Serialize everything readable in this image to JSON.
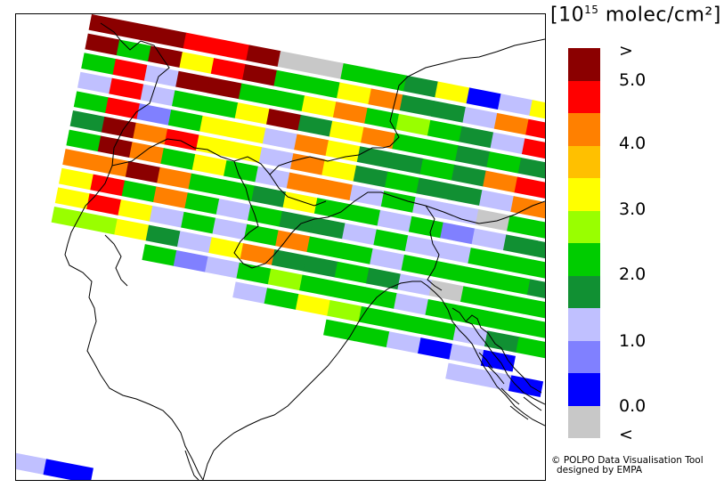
{
  "legend": {
    "unit_prefix": "[10",
    "unit_exp": "15",
    "unit_suffix": " molec/cm²]",
    "colors": [
      "#8b0000",
      "#ff0000",
      "#ff8000",
      "#ffc000",
      "#ffff00",
      "#99ff00",
      "#00cc00",
      "#119033",
      "#c0c0ff",
      "#8080ff",
      "#0000ff",
      "#c8c8c8"
    ],
    "labels": [
      ">",
      "5.0",
      "4.0",
      "3.0",
      "2.0",
      "1.0",
      "0.0",
      "<"
    ]
  },
  "credit": {
    "line1": "© POLPO Data Visualisation Tool",
    "line2": "designed by EMPA"
  },
  "swaths": [
    [
      "B",
      "B",
      "B",
      "R",
      "R",
      "B",
      "S",
      "S",
      "G",
      "G",
      "D",
      "Y",
      "N",
      "L",
      "Y",
      "O"
    ],
    [
      "B",
      "G",
      "B",
      "Y",
      "R",
      "B",
      "G",
      "G",
      "Y",
      "O",
      "D",
      "D",
      "L",
      "O",
      "R",
      "R"
    ],
    [
      "G",
      "R",
      "L",
      "B",
      "B",
      "G",
      "G",
      "Y",
      "O",
      "G",
      "U",
      "G",
      "D",
      "L",
      "R",
      "B"
    ],
    [
      "L",
      "R",
      "L",
      "G",
      "G",
      "Y",
      "B",
      "D",
      "Y",
      "O",
      "G",
      "G",
      "D",
      "G",
      "D",
      "B"
    ],
    [
      "G",
      "R",
      "M",
      "G",
      "Y",
      "Y",
      "L",
      "O",
      "Y",
      "D",
      "D",
      "G",
      "D",
      "O",
      "R",
      "B"
    ],
    [
      "D",
      "B",
      "O",
      "R",
      "Y",
      "Y",
      "L",
      "O",
      "Y",
      "D",
      "G",
      "D",
      "D",
      "L",
      "O",
      "O"
    ],
    [
      "G",
      "B",
      "O",
      "G",
      "Y",
      "G",
      "L",
      "O",
      "O",
      "L",
      "G",
      "L",
      "L",
      "S",
      "G",
      "G"
    ],
    [
      "O",
      "O",
      "B",
      "O",
      "G",
      "G",
      "D",
      "Y",
      "G",
      "G",
      "L",
      "G",
      "M",
      "L",
      "D",
      "D"
    ],
    [
      "Y",
      "R",
      "G",
      "O",
      "G",
      "L",
      "G",
      "D",
      "D",
      "L",
      "G",
      "L",
      "L",
      "G",
      "G",
      "G"
    ],
    [
      "Y",
      "R",
      "Y",
      "L",
      "G",
      "L",
      "G",
      "O",
      "G",
      "G",
      "L",
      "G",
      "G",
      "G",
      "G",
      "D"
    ],
    [
      "U",
      "U",
      "Y",
      "D",
      "L",
      "Y",
      "O",
      "D",
      "D",
      "G",
      "D",
      "L",
      "S",
      "G",
      "G",
      "G"
    ],
    [
      "",
      "",
      "",
      "G",
      "M",
      "L",
      "G",
      "U",
      "G",
      "G",
      "G",
      "L",
      "G",
      "G",
      "G",
      "G"
    ],
    [
      "",
      "",
      "",
      "",
      "",
      "",
      "L",
      "G",
      "Y",
      "U",
      "G",
      "G",
      "G",
      "L",
      "D",
      "G"
    ],
    [
      "",
      "",
      "",
      "",
      "",
      "",
      "",
      "",
      "",
      "G",
      "G",
      "L",
      "N",
      "L",
      "N",
      ""
    ],
    [
      "",
      "",
      "",
      "",
      "",
      "",
      "",
      "",
      "",
      "",
      "",
      "",
      "",
      "L",
      "L",
      "N"
    ]
  ],
  "color_codes": {
    "B": "#8b0000",
    "R": "#ff0000",
    "O": "#ff8000",
    "A": "#ffc000",
    "Y": "#ffff00",
    "U": "#99ff00",
    "G": "#00cc00",
    "D": "#119033",
    "L": "#c0c0ff",
    "M": "#8080ff",
    "N": "#0000ff",
    "S": "#c8c8c8"
  }
}
